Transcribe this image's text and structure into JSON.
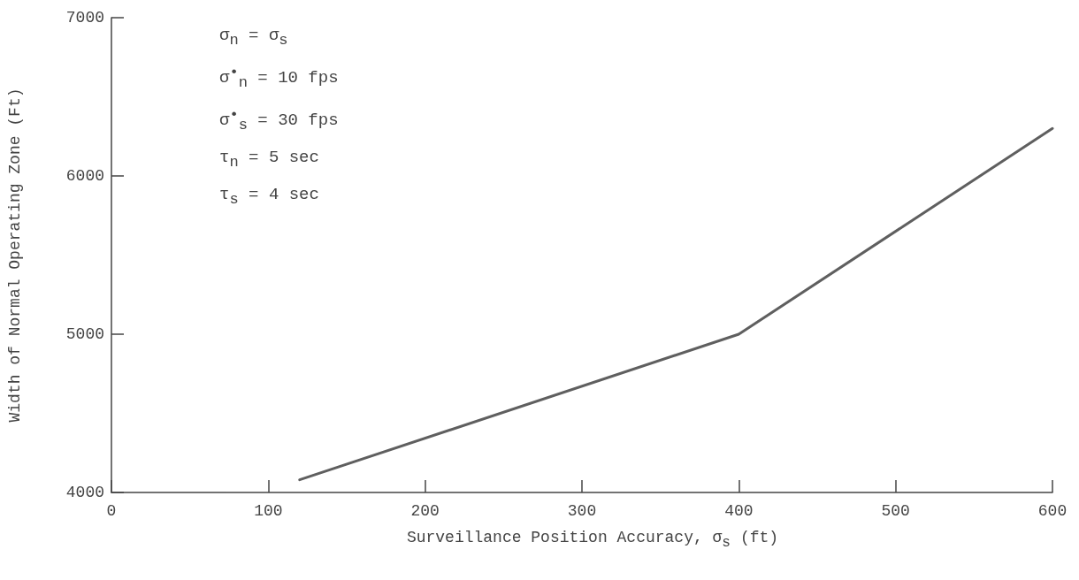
{
  "chart_data": {
    "type": "line",
    "xlabel": "Surveillance Position Accuracy, σ$_{s}$ (ft)",
    "ylabel": "Width of Normal Operating Zone (Ft)",
    "annotations": [
      "σ$_{n}$ = σ$_{s}$",
      "σ$^{•}$$_{n}$ = 10 fps",
      "σ$^{•}$$_{s}$ = 30 fps",
      "τ$_{n}$ = 5 sec",
      "τ$_{s}$ = 4 sec"
    ],
    "x": [
      120,
      400,
      600
    ],
    "series": [
      {
        "color": "#5f5f5f",
        "values": [
          4080,
          5000,
          6300
        ]
      }
    ],
    "xlim": [
      0,
      600
    ],
    "xticks": [
      0,
      100,
      200,
      300,
      400,
      500,
      600
    ],
    "ylim": [
      4000,
      7000
    ],
    "yticks": [
      4000,
      5000,
      6000,
      7000
    ],
    "grid": false,
    "marker": "none",
    "line_style": "solid"
  }
}
